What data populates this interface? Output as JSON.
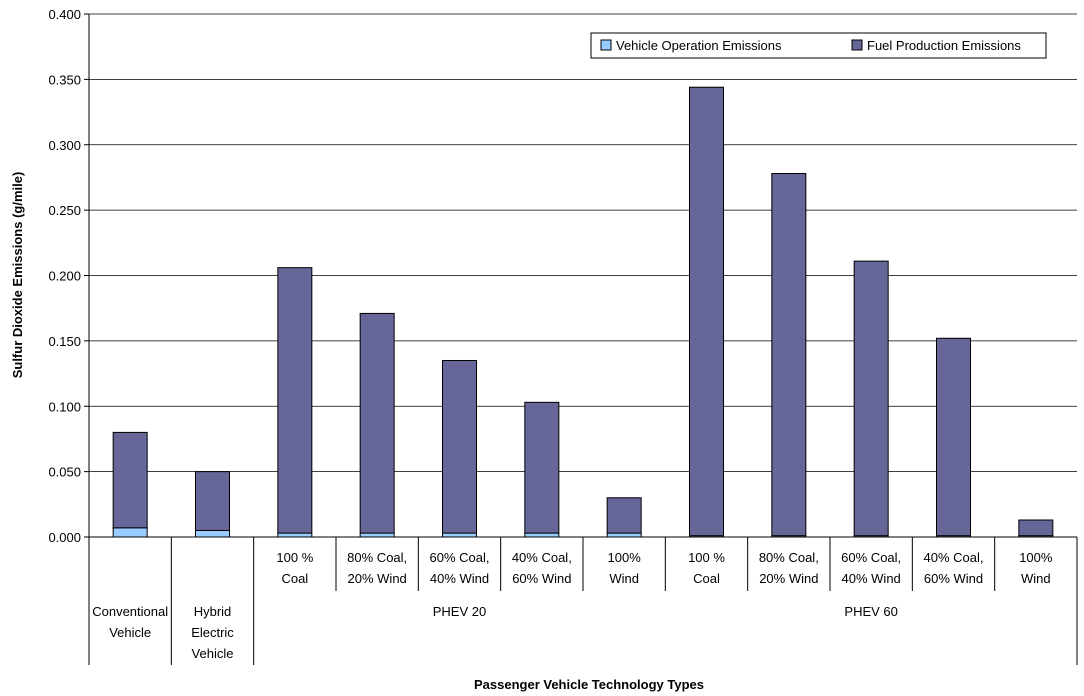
{
  "chart_data": {
    "type": "bar",
    "stacked": true,
    "ylabel": "Sulfur Dioxide Emissions (g/mile)",
    "xlabel": "Passenger Vehicle Technology Types",
    "ylim": [
      0,
      0.4
    ],
    "yticks": [
      "0.000",
      "0.050",
      "0.100",
      "0.150",
      "0.200",
      "0.250",
      "0.300",
      "0.350",
      "0.400"
    ],
    "grid": true,
    "legend_position": "top-right",
    "categories": [
      [
        "Conventional",
        "Vehicle"
      ],
      [
        "Hybrid",
        "Electric",
        "Vehicle"
      ],
      [
        "100 %",
        "Coal"
      ],
      [
        "80% Coal,",
        "20% Wind"
      ],
      [
        "60% Coal,",
        "40% Wind"
      ],
      [
        "40% Coal,",
        "60% Wind"
      ],
      [
        "100%",
        "Wind"
      ],
      [
        "100 %",
        "Coal"
      ],
      [
        "80% Coal,",
        "20% Wind"
      ],
      [
        "60% Coal,",
        "40% Wind"
      ],
      [
        "40% Coal,",
        "60% Wind"
      ],
      [
        "100%",
        "Wind"
      ]
    ],
    "groups": [
      {
        "label": "PHEV 20",
        "start": 2,
        "end": 6
      },
      {
        "label": "PHEV 60",
        "start": 7,
        "end": 11
      }
    ],
    "series": [
      {
        "name": "Vehicle Operation Emissions",
        "color": "#99ccff",
        "values": [
          0.007,
          0.005,
          0.003,
          0.003,
          0.003,
          0.003,
          0.003,
          0.001,
          0.001,
          0.001,
          0.001,
          0.001
        ]
      },
      {
        "name": "Fuel Production Emissions",
        "color": "#666699",
        "values": [
          0.073,
          0.045,
          0.203,
          0.168,
          0.132,
          0.1,
          0.027,
          0.343,
          0.277,
          0.21,
          0.151,
          0.012
        ]
      }
    ]
  }
}
